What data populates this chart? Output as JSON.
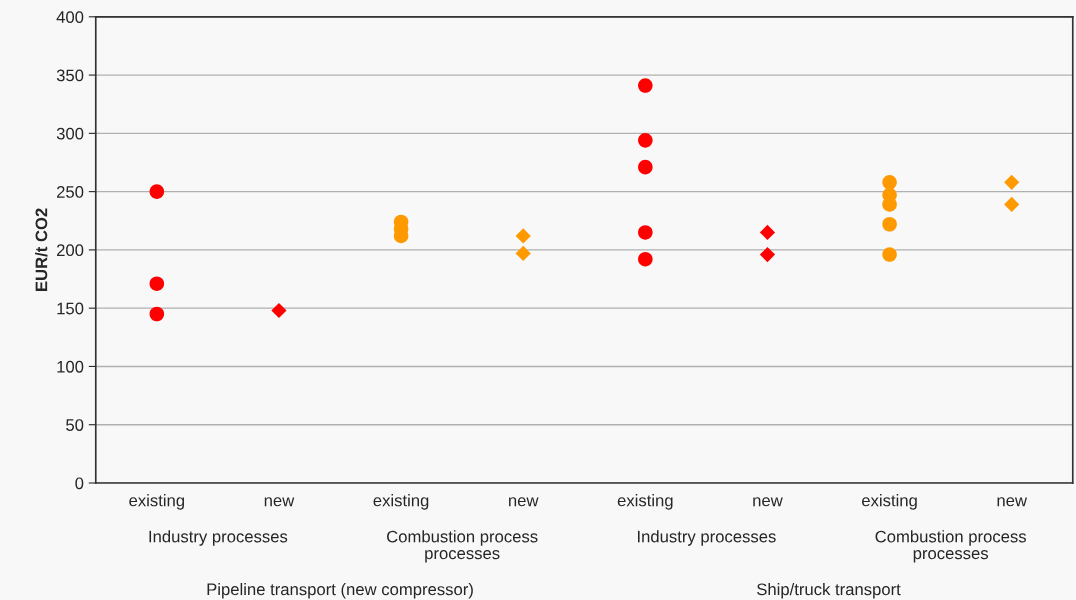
{
  "chart_data": {
    "type": "scatter",
    "categories": [
      "existing",
      "new",
      "existing",
      "new",
      "existing",
      "new",
      "existing",
      "new"
    ],
    "ylabel": "EUR/t CO2",
    "ylim": [
      0,
      400
    ],
    "yticks": [
      0,
      50,
      100,
      150,
      200,
      250,
      300,
      350,
      400
    ],
    "grid": "y",
    "annotations": [
      "Industry processes",
      "Combustion process\nprocesses",
      "Industry processes",
      "Combustion process\nprocesses",
      "Pipeline transport (new compressor)",
      "Ship/truck transport"
    ],
    "series": [
      {
        "color": "#ff0000",
        "marker": "circle",
        "values": [
          250,
          null,
          null,
          null,
          341,
          null,
          null,
          null
        ]
      },
      {
        "color": "#ff0000",
        "marker": "circle",
        "values": [
          171,
          null,
          null,
          null,
          294,
          null,
          null,
          null
        ]
      },
      {
        "color": "#ff0000",
        "marker": "circle",
        "values": [
          145,
          null,
          null,
          null,
          271,
          null,
          null,
          null
        ]
      },
      {
        "color": "#ff0000",
        "marker": "circle",
        "values": [
          null,
          null,
          null,
          null,
          215,
          null,
          null,
          null
        ]
      },
      {
        "color": "#ff0000",
        "marker": "circle",
        "values": [
          null,
          null,
          null,
          null,
          192,
          null,
          null,
          null
        ]
      },
      {
        "color": "#ff0000",
        "marker": "diamond",
        "values": [
          null,
          148,
          null,
          null,
          null,
          215,
          null,
          null
        ]
      },
      {
        "color": "#ff0000",
        "marker": "diamond",
        "values": [
          null,
          null,
          null,
          null,
          null,
          196,
          null,
          null
        ]
      },
      {
        "color": "#ff9900",
        "marker": "circle",
        "values": [
          null,
          null,
          224,
          null,
          null,
          null,
          258,
          null
        ]
      },
      {
        "color": "#ff9900",
        "marker": "circle",
        "values": [
          null,
          null,
          218,
          null,
          null,
          null,
          247,
          null
        ]
      },
      {
        "color": "#ff9900",
        "marker": "circle",
        "values": [
          null,
          null,
          212,
          null,
          null,
          null,
          239,
          null
        ]
      },
      {
        "color": "#ff9900",
        "marker": "circle",
        "values": [
          null,
          null,
          null,
          null,
          null,
          null,
          222,
          null
        ]
      },
      {
        "color": "#ff9900",
        "marker": "circle",
        "values": [
          null,
          null,
          null,
          null,
          null,
          null,
          196,
          null
        ]
      },
      {
        "color": "#ff9900",
        "marker": "diamond",
        "values": [
          null,
          null,
          null,
          212,
          null,
          null,
          null,
          258
        ]
      },
      {
        "color": "#ff9900",
        "marker": "diamond",
        "values": [
          null,
          null,
          null,
          197,
          null,
          null,
          null,
          239
        ]
      }
    ]
  }
}
